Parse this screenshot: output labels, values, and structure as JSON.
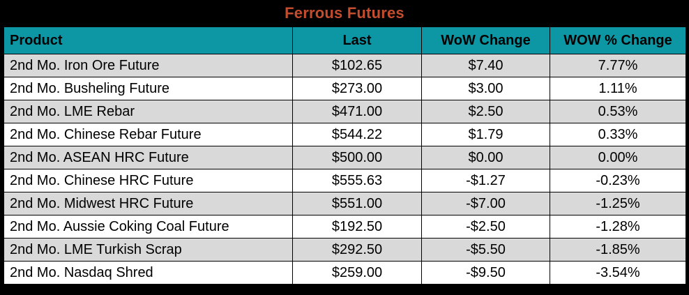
{
  "title": "Ferrous Futures",
  "colors": {
    "title_text": "#C44D2E",
    "title_bg": "#000000",
    "header_bg": "#0D96A4",
    "row_alt_bg": "#D9D9D9",
    "row_bg": "#FFFFFF",
    "border": "#000000"
  },
  "table": {
    "columns": [
      "Product",
      "Last",
      "WoW Change",
      "WOW % Change"
    ],
    "rows": [
      [
        "2nd Mo. Iron Ore Future",
        "$102.65",
        "$7.40",
        "7.77%"
      ],
      [
        "2nd Mo. Busheling Future",
        "$273.00",
        "$3.00",
        "1.11%"
      ],
      [
        "2nd Mo. LME Rebar",
        "$471.00",
        "$2.50",
        "0.53%"
      ],
      [
        "2nd Mo. Chinese Rebar Future",
        "$544.22",
        "$1.79",
        "0.33%"
      ],
      [
        "2nd Mo. ASEAN HRC Future",
        "$500.00",
        "$0.00",
        "0.00%"
      ],
      [
        "2nd Mo. Chinese HRC Future",
        "$555.63",
        "-$1.27",
        "-0.23%"
      ],
      [
        "2nd Mo. Midwest HRC Future",
        "$551.00",
        "-$7.00",
        "-1.25%"
      ],
      [
        "2nd Mo. Aussie Coking Coal Future",
        "$192.50",
        "-$2.50",
        "-1.28%"
      ],
      [
        "2nd Mo. LME Turkish Scrap",
        "$292.50",
        "-$5.50",
        "-1.85%"
      ],
      [
        "2nd Mo. Nasdaq Shred",
        "$259.00",
        "-$9.50",
        "-3.54%"
      ]
    ]
  },
  "chart_data": {
    "type": "table",
    "title": "Ferrous Futures",
    "columns": [
      "Product",
      "Last",
      "WoW Change",
      "WOW % Change"
    ],
    "categories": [
      "2nd Mo. Iron Ore Future",
      "2nd Mo. Busheling Future",
      "2nd Mo. LME Rebar",
      "2nd Mo. Chinese Rebar Future",
      "2nd Mo. ASEAN HRC Future",
      "2nd Mo. Chinese HRC Future",
      "2nd Mo. Midwest HRC Future",
      "2nd Mo. Aussie Coking Coal Future",
      "2nd Mo. LME Turkish Scrap",
      "2nd Mo. Nasdaq Shred"
    ],
    "series": [
      {
        "name": "Last (USD)",
        "values": [
          102.65,
          273.0,
          471.0,
          544.22,
          500.0,
          555.63,
          551.0,
          192.5,
          292.5,
          259.0
        ]
      },
      {
        "name": "WoW Change (USD)",
        "values": [
          7.4,
          3.0,
          2.5,
          1.79,
          0.0,
          -1.27,
          -7.0,
          -2.5,
          -5.5,
          -9.5
        ]
      },
      {
        "name": "WoW % Change",
        "values": [
          7.77,
          1.11,
          0.53,
          0.33,
          0.0,
          -0.23,
          -1.25,
          -1.28,
          -1.85,
          -3.54
        ]
      }
    ]
  }
}
